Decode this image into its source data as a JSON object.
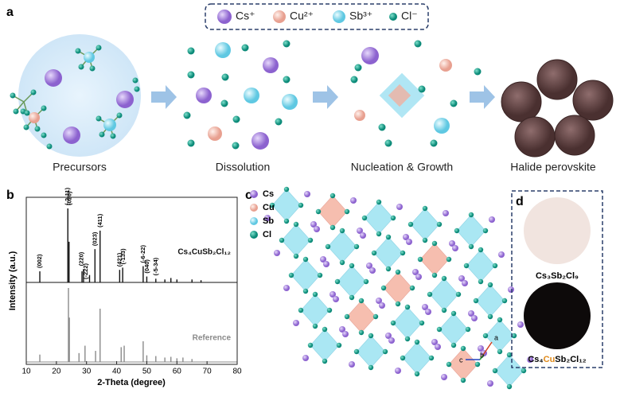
{
  "panels": {
    "a": "a",
    "b": "b",
    "c": "c",
    "d": "d"
  },
  "ions": {
    "cs": "Cs⁺",
    "cu": "Cu²⁺",
    "sb": "Sb³⁺",
    "cl": "Cl⁻"
  },
  "stages": [
    "Precursors",
    "Dissolution",
    "Nucleation & Growth",
    "Halide perovskite"
  ],
  "chart_data": [
    {
      "type": "stem",
      "ylabel": "Intensity (a.u.)",
      "xlim": [
        10,
        80
      ],
      "ylim": [
        0,
        100
      ],
      "series": [
        {
          "name": "Cs₄CuSb₂Cl₁₂",
          "color": "#111111",
          "x": [
            14.5,
            23.8,
            24.2,
            28.5,
            29.0,
            31.0,
            32.8,
            34.5,
            41.0,
            42.0,
            48.8,
            50.0,
            53.0,
            56.0,
            58.0,
            60.0,
            65.0,
            68.0
          ],
          "values": [
            15,
            100,
            55,
            15,
            18,
            10,
            45,
            70,
            17,
            20,
            22,
            8,
            5,
            4,
            6,
            4,
            4,
            3
          ]
        }
      ],
      "annotations": [
        {
          "label": "(002)",
          "x": 14.5
        },
        {
          "label": "(-3-11)",
          "x": 23.8
        },
        {
          "label": "(020)",
          "x": 24.4
        },
        {
          "label": "(220)",
          "x": 28.4
        },
        {
          "label": "(-222)",
          "x": 29.8
        },
        {
          "label": "(023)",
          "x": 32.8
        },
        {
          "label": "(411)",
          "x": 34.6
        },
        {
          "label": "(421)",
          "x": 41.0
        },
        {
          "label": "(-133)",
          "x": 42.2
        },
        {
          "label": "(-6-22)",
          "x": 48.8
        },
        {
          "label": "(040)",
          "x": 50.2
        },
        {
          "label": "(-5-34)",
          "x": 53.0
        }
      ]
    },
    {
      "type": "stem",
      "xlabel": "2-Theta (degree)",
      "xlim": [
        10,
        80
      ],
      "ylim": [
        0,
        100
      ],
      "xticks": [
        10,
        20,
        30,
        40,
        50,
        60,
        70,
        80
      ],
      "series": [
        {
          "name": "Reference",
          "color": "#8a8a8a",
          "x": [
            14.5,
            24.0,
            24.3,
            27.5,
            29.5,
            33.0,
            34.5,
            41.5,
            42.5,
            48.8,
            50.0,
            53.0,
            56.0,
            58.0,
            60.0,
            62.0,
            65.0
          ],
          "values": [
            10,
            100,
            60,
            12,
            22,
            15,
            72,
            20,
            22,
            28,
            9,
            8,
            6,
            7,
            5,
            6,
            4
          ]
        }
      ]
    }
  ],
  "structure": {
    "legend": [
      "Cs",
      "Cu",
      "Sb",
      "Cl"
    ],
    "axes": [
      "a",
      "b",
      "c"
    ]
  },
  "samples": {
    "first": "Cs₃Sb₂Cl₉",
    "second": [
      "Cs₄",
      "Cu",
      "Sb₂Cl₁₂"
    ]
  }
}
